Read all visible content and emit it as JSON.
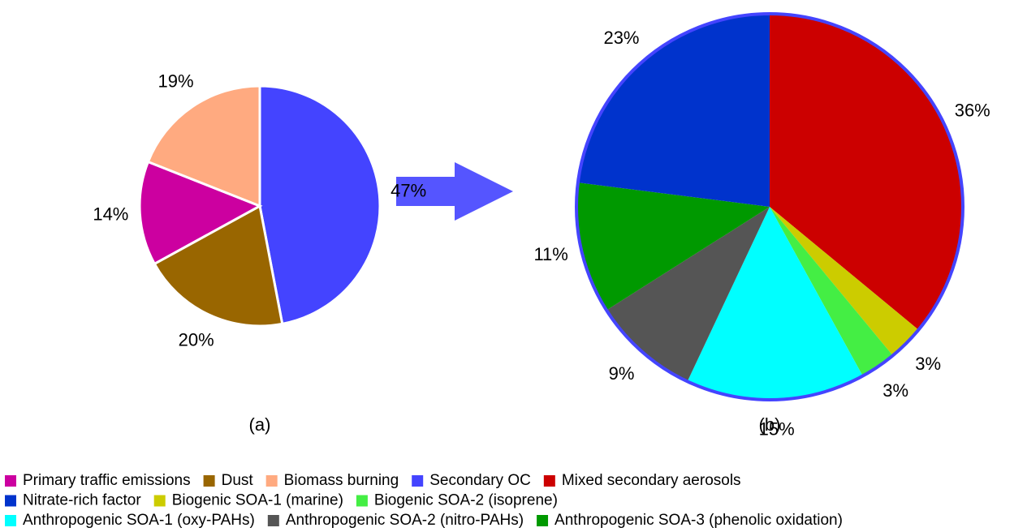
{
  "chart_data": [
    {
      "type": "pie",
      "label": "(a)",
      "categories": [
        "Secondary OC",
        "Dust",
        "Primary traffic emissions",
        "Biomass burning"
      ],
      "values": [
        47,
        20,
        14,
        19
      ],
      "value_labels": [
        "47%",
        "20%",
        "14%",
        "19%"
      ],
      "colors": [
        "#4444ff",
        "#996600",
        "#cc00a0",
        "#ffaa80"
      ]
    },
    {
      "type": "pie",
      "label": "(b)",
      "categories": [
        "Mixed secondary aerosols",
        "Biogenic SOA-1 (marine)",
        "Biogenic SOA-2 (isoprene)",
        "Anthropogenic SOA-1 (oxy-PAHs)",
        "Anthropogenic SOA-2 (nitro-PAHs)",
        "Anthropogenic SOA-3 (phenolic oxidation)",
        "Nitrate-rich factor"
      ],
      "values": [
        36,
        3,
        3,
        15,
        9,
        11,
        23
      ],
      "value_labels": [
        "36%",
        "3%",
        "3%",
        "15%",
        "9%",
        "11%",
        "23%"
      ],
      "colors": [
        "#cc0000",
        "#cccc00",
        "#44ee44",
        "#00ffff",
        "#555555",
        "#009900",
        "#0033cc"
      ]
    }
  ]
}
